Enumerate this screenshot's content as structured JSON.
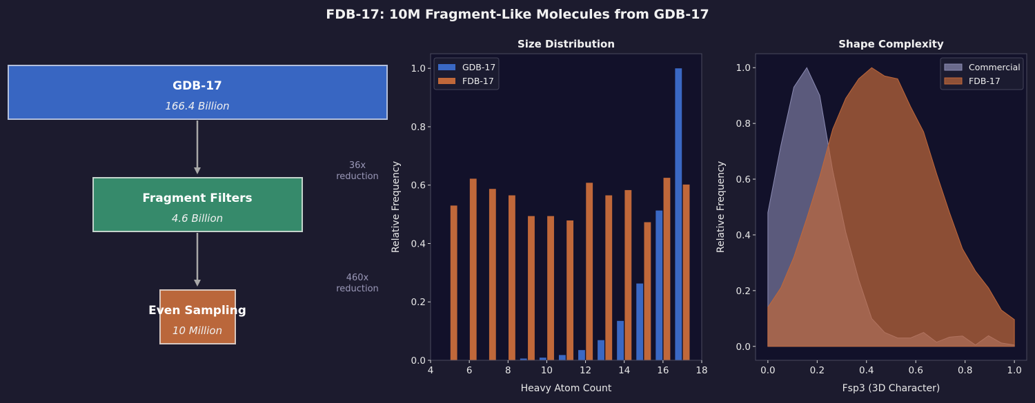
{
  "title": "FDB-17: 10M Fragment-Like Molecules from GDB-17",
  "colors": {
    "background": "#1c1b2e",
    "plot_bg": "#12112a",
    "gdb": "#3a68c4",
    "fdb": "#c0683a",
    "filters": "#368a6b",
    "commercial": "#8c8cb4",
    "muted_text": "#9a98b8"
  },
  "diagram": {
    "boxes": [
      {
        "name": "GDB-17",
        "count": "166.4 Billion",
        "color": "#3866c2"
      },
      {
        "name": "Fragment Filters",
        "count": "4.6 Billion",
        "color": "#368a6b"
      },
      {
        "name": "Even Sampling",
        "count": "10 Million",
        "color": "#ba673b"
      }
    ],
    "reductions": [
      {
        "factor": "36x",
        "label": "reduction"
      },
      {
        "factor": "460x",
        "label": "reduction"
      }
    ]
  },
  "chart_data": [
    {
      "type": "bar",
      "title": "Size Distribution",
      "xlabel": "Heavy Atom Count",
      "ylabel": "Relative Frequency",
      "xlim": [
        4,
        18
      ],
      "ylim": [
        0,
        1.05
      ],
      "xticks": [
        "4",
        "6",
        "8",
        "10",
        "12",
        "14",
        "16",
        "18"
      ],
      "yticks": [
        "0.0",
        "0.2",
        "0.4",
        "0.6",
        "0.8",
        "1.0"
      ],
      "legend": "top-left",
      "grid": false,
      "categories": [
        5,
        6,
        7,
        8,
        9,
        10,
        11,
        12,
        13,
        14,
        15,
        16,
        17
      ],
      "series": [
        {
          "name": "GDB-17",
          "color": "#3a68c4",
          "values": [
            0,
            0,
            0,
            0,
            0.006,
            0.009,
            0.018,
            0.035,
            0.069,
            0.135,
            0.263,
            0.513,
            1.0
          ]
        },
        {
          "name": "FDB-17",
          "color": "#c0683a",
          "values": [
            0.53,
            0.622,
            0.587,
            0.565,
            0.494,
            0.494,
            0.479,
            0.608,
            0.565,
            0.583,
            0.473,
            0.625,
            0.602
          ]
        }
      ]
    },
    {
      "type": "area",
      "title": "Shape Complexity",
      "xlabel": "Fsp3 (3D Character)",
      "ylabel": "Relative Frequency",
      "xlim": [
        -0.05,
        1.05
      ],
      "ylim": [
        -0.05,
        1.05
      ],
      "xticks": [
        "0.0",
        "0.2",
        "0.4",
        "0.6",
        "0.8",
        "1.0"
      ],
      "yticks": [
        "0.0",
        "0.2",
        "0.4",
        "0.6",
        "0.8",
        "1.0"
      ],
      "legend": "top-right",
      "grid": false,
      "x": [
        0,
        0.0526,
        0.1053,
        0.1579,
        0.2105,
        0.2632,
        0.3158,
        0.3684,
        0.4211,
        0.4737,
        0.5263,
        0.5789,
        0.6316,
        0.6842,
        0.7368,
        0.7895,
        0.8421,
        0.8947,
        0.9474,
        1.0
      ],
      "series": [
        {
          "name": "Commercial",
          "color": "#8c8cb4",
          "values": [
            0.48,
            0.72,
            0.93,
            1.0,
            0.9,
            0.63,
            0.41,
            0.24,
            0.1,
            0.05,
            0.03,
            0.03,
            0.05,
            0.015,
            0.033,
            0.037,
            0.005,
            0.038,
            0.012,
            0.005
          ]
        },
        {
          "name": "FDB-17",
          "color": "#c0683a",
          "values": [
            0.14,
            0.21,
            0.32,
            0.46,
            0.61,
            0.78,
            0.89,
            0.96,
            1.0,
            0.97,
            0.96,
            0.86,
            0.77,
            0.62,
            0.48,
            0.35,
            0.27,
            0.21,
            0.13,
            0.096
          ]
        }
      ]
    }
  ]
}
